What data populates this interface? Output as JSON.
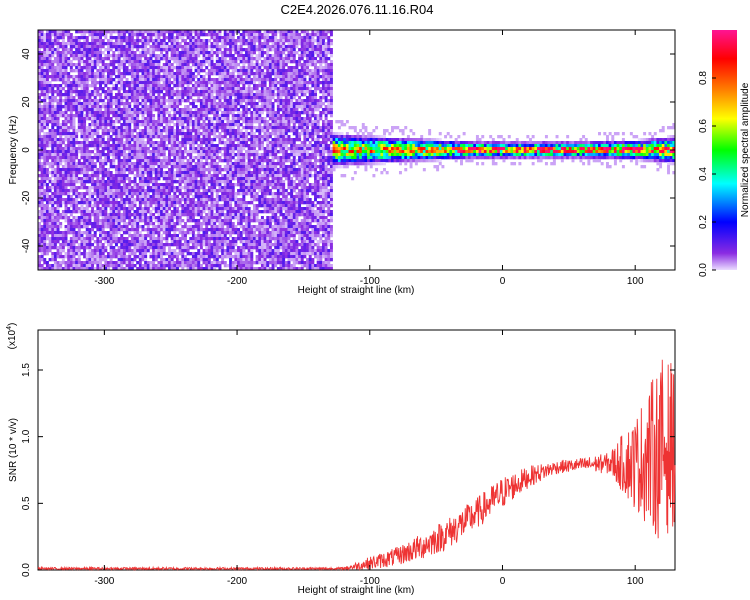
{
  "title": "C2E4.2026.076.11.16.R04",
  "chart_data": [
    {
      "type": "heatmap",
      "xlabel": "Height of straight line (km)",
      "ylabel": "Frequency (Hz)",
      "xlim": [
        -350,
        130
      ],
      "ylim": [
        -50,
        50
      ],
      "x_ticks": [
        -300,
        -200,
        -100,
        0,
        100
      ],
      "x_tick_labels": [
        "-300",
        "-200",
        "-100",
        "0",
        "100"
      ],
      "y_ticks": [
        -40,
        -20,
        0,
        20,
        40
      ],
      "y_tick_labels": [
        "-40",
        "-20",
        "0",
        "20",
        "40"
      ],
      "noise_region_x": [
        -350,
        -128
      ],
      "signal_region_x": [
        -128,
        130
      ],
      "signal_band_halfwidth_hz": [
        {
          "x": -128,
          "hw": 6
        },
        {
          "x": -100,
          "hw": 5
        },
        {
          "x": -60,
          "hw": 4
        },
        {
          "x": -20,
          "hw": 3
        },
        {
          "x": 20,
          "hw": 3
        },
        {
          "x": 60,
          "hw": 3
        },
        {
          "x": 100,
          "hw": 3.5
        },
        {
          "x": 130,
          "hw": 5
        }
      ],
      "grid": false,
      "colorbar": {
        "label": "Normalized spectral amplitude",
        "range": [
          0.0,
          1.0
        ],
        "ticks": [
          0.0,
          0.2,
          0.4,
          0.6,
          0.8
        ],
        "tick_labels": [
          "0.0",
          "0.2",
          "0.4",
          "0.6",
          "0.8"
        ],
        "colors": [
          "#eadcff",
          "#8a2be2",
          "#0000ff",
          "#00ffff",
          "#00ff00",
          "#ffff00",
          "#ff8000",
          "#ff0000",
          "#ff1493"
        ]
      }
    },
    {
      "type": "line",
      "xlabel": "Height of straight line (km)",
      "ylabel": "SNR (10 * v/v)",
      "y_multiplier_label": "(x10",
      "y_multiplier_exp": "4",
      "y_multiplier_close": ")",
      "xlim": [
        -350,
        130
      ],
      "ylim": [
        0,
        1.8
      ],
      "x_ticks": [
        -300,
        -200,
        -100,
        0,
        100
      ],
      "x_tick_labels": [
        "-300",
        "-200",
        "-100",
        "0",
        "100"
      ],
      "y_ticks": [
        0.0,
        0.5,
        1.0,
        1.5
      ],
      "y_tick_labels": [
        "0.0",
        "0.5",
        "1.0",
        "1.5"
      ],
      "line_color": "#ee3333",
      "grid": false,
      "envelope": [
        {
          "x": -350,
          "mean": 0.01,
          "spread": 0.01
        },
        {
          "x": -120,
          "mean": 0.01,
          "spread": 0.01
        },
        {
          "x": -100,
          "mean": 0.05,
          "spread": 0.05
        },
        {
          "x": -80,
          "mean": 0.1,
          "spread": 0.07
        },
        {
          "x": -60,
          "mean": 0.18,
          "spread": 0.1
        },
        {
          "x": -40,
          "mean": 0.28,
          "spread": 0.12
        },
        {
          "x": -20,
          "mean": 0.42,
          "spread": 0.12
        },
        {
          "x": 0,
          "mean": 0.58,
          "spread": 0.12
        },
        {
          "x": 20,
          "mean": 0.7,
          "spread": 0.08
        },
        {
          "x": 40,
          "mean": 0.77,
          "spread": 0.05
        },
        {
          "x": 60,
          "mean": 0.79,
          "spread": 0.05
        },
        {
          "x": 80,
          "mean": 0.8,
          "spread": 0.08
        },
        {
          "x": 100,
          "mean": 0.8,
          "spread": 0.35
        },
        {
          "x": 120,
          "mean": 0.9,
          "spread": 0.7
        },
        {
          "x": 130,
          "mean": 0.95,
          "spread": 0.6
        }
      ]
    }
  ]
}
